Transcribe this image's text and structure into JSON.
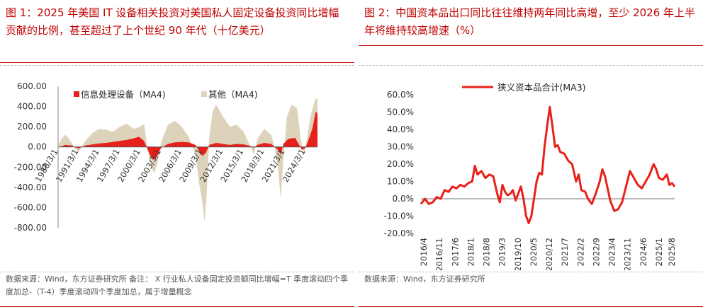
{
  "left": {
    "title": "图 1：2025 年美国 IT 设备相关投资对美国私人固定设备投资同比增幅贡献的比例，甚至超过了上个世纪 90 年代（十亿美元）",
    "source": "数据来源：Wind，东方证券研究所 备注： X 行业私人设备固定投资额同比增幅=T 季度滚动四个季度加总-（T-4）季度滚动四个季度加总，属于增量概念"
  },
  "right": {
    "title": "图 2：中国资本品出口同比往往维持两年同比高增，至少 2026 年上半年将维持较高增速（%）",
    "source": "数据来源：Wind，东方证券研究所"
  },
  "colors": {
    "red": "#e8201a",
    "beige": "#ddd3bb",
    "title_red": "#c00000",
    "axis": "#444444"
  },
  "chart_data": [
    {
      "type": "area",
      "stacked": false,
      "ylim": [
        -800,
        600
      ],
      "yticks": [
        "600.00",
        "400.00",
        "200.00",
        "0.00",
        "-200.00",
        "-400.00",
        "-600.00",
        "-800.00"
      ],
      "ytick_values": [
        600,
        400,
        200,
        0,
        -200,
        -400,
        -600,
        -800
      ],
      "xticks": [
        "1988/3/1",
        "1991/3/1",
        "1994/3/1",
        "1997/3/1",
        "2000/3/1",
        "2003/3/1",
        "2006/3/1",
        "2009/3/1",
        "2012/3/1",
        "2015/3/1",
        "2018/3/1",
        "2021/3/1",
        "2024/3/1"
      ],
      "xrange": [
        1988.0,
        2025.75
      ],
      "legend_position": "top",
      "series": [
        {
          "name": "信息处理设备（MA4)",
          "color": "#e8201a",
          "points": [
            [
              1988.0,
              0
            ],
            [
              1988.5,
              5
            ],
            [
              1989,
              20
            ],
            [
              1990,
              15
            ],
            [
              1990.5,
              -5
            ],
            [
              1991,
              -15
            ],
            [
              1991.5,
              0
            ],
            [
              1992,
              15
            ],
            [
              1993,
              25
            ],
            [
              1994,
              35
            ],
            [
              1995,
              40
            ],
            [
              1996,
              50
            ],
            [
              1997,
              60
            ],
            [
              1998,
              70
            ],
            [
              1999,
              85
            ],
            [
              1999.75,
              100
            ],
            [
              2000.5,
              60
            ],
            [
              2001,
              -20
            ],
            [
              2001.5,
              -100
            ],
            [
              2002,
              -130
            ],
            [
              2002.5,
              -80
            ],
            [
              2003,
              -10
            ],
            [
              2004,
              30
            ],
            [
              2005,
              45
            ],
            [
              2006,
              50
            ],
            [
              2007,
              45
            ],
            [
              2008,
              20
            ],
            [
              2008.5,
              -40
            ],
            [
              2009,
              -90
            ],
            [
              2009.5,
              -60
            ],
            [
              2010,
              20
            ],
            [
              2011,
              40
            ],
            [
              2012,
              30
            ],
            [
              2013,
              20
            ],
            [
              2014,
              30
            ],
            [
              2015,
              25
            ],
            [
              2016,
              10
            ],
            [
              2016.5,
              -10
            ],
            [
              2017,
              20
            ],
            [
              2018,
              40
            ],
            [
              2019,
              30
            ],
            [
              2020,
              -30
            ],
            [
              2020.4,
              -80
            ],
            [
              2020.8,
              30
            ],
            [
              2021.5,
              80
            ],
            [
              2022.5,
              90
            ],
            [
              2023,
              30
            ],
            [
              2023.5,
              -30
            ],
            [
              2024,
              -10
            ],
            [
              2024.5,
              80
            ],
            [
              2025,
              180
            ],
            [
              2025.5,
              350
            ],
            [
              2025.75,
              330
            ]
          ]
        },
        {
          "name": "其他（MA4)",
          "color": "#ddd3bb",
          "points": [
            [
              1988.0,
              20
            ],
            [
              1988.5,
              80
            ],
            [
              1989,
              120
            ],
            [
              1989.5,
              90
            ],
            [
              1990,
              40
            ],
            [
              1990.5,
              -20
            ],
            [
              1991,
              -50
            ],
            [
              1991.5,
              10
            ],
            [
              1992,
              60
            ],
            [
              1993,
              140
            ],
            [
              1994,
              180
            ],
            [
              1995,
              170
            ],
            [
              1996,
              150
            ],
            [
              1997,
              200
            ],
            [
              1998,
              230
            ],
            [
              1999,
              180
            ],
            [
              2000,
              200
            ],
            [
              2000.5,
              230
            ],
            [
              2001,
              0
            ],
            [
              2001.5,
              -200
            ],
            [
              2002,
              -260
            ],
            [
              2002.5,
              -150
            ],
            [
              2003,
              50
            ],
            [
              2004,
              220
            ],
            [
              2005,
              260
            ],
            [
              2006,
              200
            ],
            [
              2007,
              100
            ],
            [
              2008,
              -80
            ],
            [
              2008.5,
              -350
            ],
            [
              2009,
              -550
            ],
            [
              2009.3,
              -740
            ],
            [
              2009.6,
              -500
            ],
            [
              2010,
              100
            ],
            [
              2010.5,
              350
            ],
            [
              2011,
              420
            ],
            [
              2012,
              300
            ],
            [
              2013,
              200
            ],
            [
              2014,
              220
            ],
            [
              2015,
              150
            ],
            [
              2016,
              0
            ],
            [
              2016.5,
              -80
            ],
            [
              2017,
              80
            ],
            [
              2018,
              180
            ],
            [
              2019,
              120
            ],
            [
              2019.5,
              0
            ],
            [
              2020,
              -200
            ],
            [
              2020.4,
              -520
            ],
            [
              2020.8,
              -100
            ],
            [
              2021.3,
              300
            ],
            [
              2022,
              420
            ],
            [
              2022.8,
              380
            ],
            [
              2023.3,
              80
            ],
            [
              2023.8,
              -80
            ],
            [
              2024.3,
              120
            ],
            [
              2024.8,
              320
            ],
            [
              2025.2,
              420
            ],
            [
              2025.5,
              480
            ],
            [
              2025.75,
              470
            ]
          ]
        }
      ]
    },
    {
      "type": "line",
      "ylim": [
        -20,
        60
      ],
      "yticks": [
        "60.0%",
        "50.0%",
        "40.0%",
        "30.0%",
        "20.0%",
        "10.0%",
        "0.0%",
        "-10.0%",
        "-20.0%"
      ],
      "ytick_values": [
        60,
        50,
        40,
        30,
        20,
        10,
        0,
        -10,
        -20
      ],
      "xticks": [
        "2016/4",
        "2016/11",
        "2017/6",
        "2018/1",
        "2018/8",
        "2019/3",
        "2019/10",
        "2020/5",
        "2020/12",
        "2021/7",
        "2022/2",
        "2022/9",
        "2023/4",
        "2023/11",
        "2024/6",
        "2025/1",
        "2025/8"
      ],
      "xrange": [
        2016.25,
        2025.9
      ],
      "legend_position": "top",
      "series": [
        {
          "name": "狭义资本品合计(MA3)",
          "color": "#e8201a",
          "points": [
            [
              2016.25,
              -3
            ],
            [
              2016.4,
              0
            ],
            [
              2016.55,
              -3
            ],
            [
              2016.7,
              -2
            ],
            [
              2016.85,
              1
            ],
            [
              2017.0,
              0
            ],
            [
              2017.15,
              5
            ],
            [
              2017.3,
              4
            ],
            [
              2017.45,
              7
            ],
            [
              2017.6,
              6
            ],
            [
              2017.75,
              8
            ],
            [
              2017.9,
              7
            ],
            [
              2018.05,
              9
            ],
            [
              2018.2,
              10
            ],
            [
              2018.3,
              19
            ],
            [
              2018.4,
              14
            ],
            [
              2018.55,
              16
            ],
            [
              2018.7,
              12
            ],
            [
              2018.85,
              14
            ],
            [
              2019.0,
              13
            ],
            [
              2019.15,
              3
            ],
            [
              2019.25,
              -2
            ],
            [
              2019.35,
              8
            ],
            [
              2019.45,
              4
            ],
            [
              2019.55,
              2
            ],
            [
              2019.65,
              3
            ],
            [
              2019.75,
              5
            ],
            [
              2019.85,
              -1
            ],
            [
              2019.95,
              3
            ],
            [
              2020.05,
              7
            ],
            [
              2020.15,
              0
            ],
            [
              2020.25,
              -10
            ],
            [
              2020.35,
              -14
            ],
            [
              2020.45,
              -10
            ],
            [
              2020.55,
              0
            ],
            [
              2020.65,
              10
            ],
            [
              2020.75,
              15
            ],
            [
              2020.85,
              14
            ],
            [
              2020.95,
              30
            ],
            [
              2021.05,
              42
            ],
            [
              2021.15,
              53
            ],
            [
              2021.25,
              42
            ],
            [
              2021.35,
              30
            ],
            [
              2021.45,
              31
            ],
            [
              2021.55,
              27
            ],
            [
              2021.7,
              26
            ],
            [
              2021.85,
              22
            ],
            [
              2022.0,
              20
            ],
            [
              2022.15,
              10
            ],
            [
              2022.25,
              14
            ],
            [
              2022.35,
              5
            ],
            [
              2022.5,
              4
            ],
            [
              2022.6,
              0
            ],
            [
              2022.75,
              -3
            ],
            [
              2022.9,
              3
            ],
            [
              2023.05,
              10
            ],
            [
              2023.15,
              17
            ],
            [
              2023.25,
              13
            ],
            [
              2023.35,
              6
            ],
            [
              2023.45,
              -1
            ],
            [
              2023.6,
              -7
            ],
            [
              2023.75,
              -6
            ],
            [
              2023.9,
              -2
            ],
            [
              2024.05,
              7
            ],
            [
              2024.2,
              16
            ],
            [
              2024.35,
              12
            ],
            [
              2024.5,
              8
            ],
            [
              2024.65,
              6
            ],
            [
              2024.8,
              10
            ],
            [
              2024.95,
              14
            ],
            [
              2025.1,
              20
            ],
            [
              2025.2,
              17
            ],
            [
              2025.3,
              12
            ],
            [
              2025.45,
              11
            ],
            [
              2025.6,
              14
            ],
            [
              2025.7,
              8
            ],
            [
              2025.8,
              9
            ],
            [
              2025.9,
              7
            ]
          ]
        }
      ]
    }
  ]
}
